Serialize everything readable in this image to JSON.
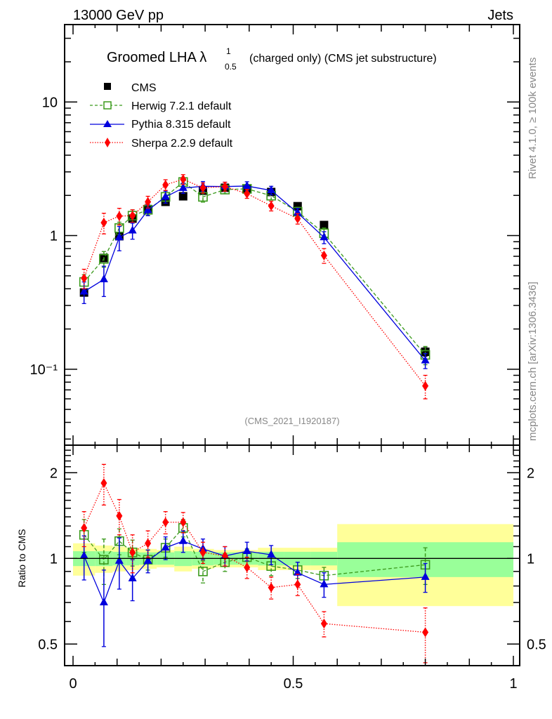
{
  "header": {
    "left": "13000 GeV pp",
    "right": "Jets"
  },
  "side_labels": {
    "rivet": "Rivet 4.1.0, ≥ 100k events",
    "mcplots": "mcplots.cern.ch [arXiv:1306.3436]"
  },
  "chart_data": [
    {
      "type": "line",
      "panel": "main",
      "title": "Groomed LHA λ",
      "title_sup": "1",
      "title_sub": "0.5",
      "title_suffix": "(charged only) (CMS jet substructure)",
      "analysis_label": "(CMS_2021_I1920187)",
      "xlabel": "",
      "ylabel": "",
      "yscale": "log",
      "ylim": [
        0.027,
        38
      ],
      "xlim": [
        0,
        1
      ],
      "yticks": [
        {
          "value": 10,
          "label": "10"
        },
        {
          "value": 1,
          "label": "1"
        },
        {
          "value": 0.1,
          "label": "10⁻¹"
        }
      ],
      "x": [
        0.025,
        0.07,
        0.105,
        0.135,
        0.17,
        0.21,
        0.25,
        0.295,
        0.345,
        0.395,
        0.45,
        0.51,
        0.57,
        0.8
      ],
      "legend": {
        "position": "top-left",
        "entries": [
          "CMS",
          "Herwig 7.2.1 default",
          "Pythia 8.315 default",
          "Sherpa 2.2.9 default"
        ]
      },
      "series": [
        {
          "name": "CMS",
          "color": "#000000",
          "marker": "square",
          "line": "none",
          "values": [
            0.375,
            0.68,
            0.99,
            1.34,
            1.58,
            1.79,
            1.97,
            2.17,
            2.28,
            2.22,
            2.12,
            1.66,
            1.2,
            0.135
          ],
          "err": [
            0.02,
            0.04,
            0.05,
            0.06,
            0.07,
            0.08,
            0.08,
            0.09,
            0.1,
            0.1,
            0.1,
            0.08,
            0.06,
            0.01
          ]
        },
        {
          "name": "Herwig 7.2.1 default",
          "color": "#3b9a1c",
          "marker": "open-square",
          "line": "dashed",
          "values": [
            0.45,
            0.67,
            1.14,
            1.41,
            1.56,
            1.95,
            2.52,
            1.95,
            2.21,
            2.24,
            1.99,
            1.51,
            1.04,
            0.128
          ],
          "err": [
            0.06,
            0.09,
            0.12,
            0.15,
            0.14,
            0.15,
            0.18,
            0.17,
            0.15,
            0.15,
            0.14,
            0.12,
            0.1,
            0.02
          ]
        },
        {
          "name": "Pythia 8.315 default",
          "color": "#0000dd",
          "marker": "triangle",
          "line": "solid",
          "values": [
            0.38,
            0.47,
            0.97,
            1.09,
            1.55,
            1.95,
            2.27,
            2.34,
            2.33,
            2.35,
            2.18,
            1.48,
            0.97,
            0.116
          ],
          "err": [
            0.07,
            0.12,
            0.2,
            0.15,
            0.14,
            0.2,
            0.2,
            0.2,
            0.18,
            0.18,
            0.16,
            0.12,
            0.1,
            0.015
          ]
        },
        {
          "name": "Sherpa 2.2.9 default",
          "color": "#ff0000",
          "marker": "diamond",
          "line": "dotted",
          "values": [
            0.48,
            1.25,
            1.4,
            1.41,
            1.79,
            2.4,
            2.64,
            2.28,
            2.33,
            2.06,
            1.67,
            1.34,
            0.71,
            0.075
          ],
          "err": [
            0.08,
            0.22,
            0.2,
            0.15,
            0.18,
            0.22,
            0.22,
            0.2,
            0.18,
            0.16,
            0.14,
            0.12,
            0.09,
            0.015
          ]
        }
      ]
    },
    {
      "type": "line",
      "panel": "ratio",
      "ylabel": "Ratio to CMS",
      "yscale": "log",
      "ylim": [
        0.42,
        2.5
      ],
      "xlim": [
        0,
        1
      ],
      "yticks": [
        {
          "value": 2,
          "label": "2"
        },
        {
          "value": 1,
          "label": "1"
        },
        {
          "value": 0.5,
          "label": "0.5"
        }
      ],
      "xticks": [
        {
          "value": 0,
          "label": "0"
        },
        {
          "value": 0.5,
          "label": "0.5"
        },
        {
          "value": 1,
          "label": "1"
        }
      ],
      "bin_edges": [
        0,
        0.05,
        0.09,
        0.12,
        0.15,
        0.19,
        0.23,
        0.27,
        0.32,
        0.37,
        0.42,
        0.48,
        0.54,
        0.6,
        1.0
      ],
      "band_inner": [
        0.06,
        0.06,
        0.055,
        0.055,
        0.05,
        0.05,
        0.06,
        0.055,
        0.05,
        0.05,
        0.055,
        0.055,
        0.055,
        0.14
      ],
      "band_outer": [
        0.13,
        0.11,
        0.1,
        0.09,
        0.08,
        0.07,
        0.1,
        0.08,
        0.07,
        0.07,
        0.09,
        0.09,
        0.09,
        0.32
      ],
      "x": [
        0.025,
        0.07,
        0.105,
        0.135,
        0.17,
        0.21,
        0.25,
        0.295,
        0.345,
        0.395,
        0.45,
        0.51,
        0.57,
        0.8
      ],
      "series": [
        {
          "name": "Herwig 7.2.1 default",
          "color": "#3b9a1c",
          "marker": "open-square",
          "line": "dashed",
          "values": [
            1.21,
            0.99,
            1.15,
            1.05,
            0.99,
            1.09,
            1.28,
            0.9,
            0.97,
            1.01,
            0.94,
            0.91,
            0.87,
            0.95
          ],
          "err": [
            0.16,
            0.18,
            0.12,
            0.11,
            0.08,
            0.08,
            0.09,
            0.08,
            0.07,
            0.07,
            0.07,
            0.06,
            0.06,
            0.14
          ]
        },
        {
          "name": "Pythia 8.315 default",
          "color": "#0000dd",
          "marker": "triangle",
          "line": "solid",
          "values": [
            1.02,
            0.7,
            0.98,
            0.85,
            0.98,
            1.09,
            1.15,
            1.08,
            1.02,
            1.06,
            1.03,
            0.89,
            0.81,
            0.86
          ],
          "err": [
            0.18,
            0.21,
            0.2,
            0.14,
            0.09,
            0.1,
            0.1,
            0.09,
            0.08,
            0.08,
            0.08,
            0.08,
            0.08,
            0.1
          ]
        },
        {
          "name": "Sherpa 2.2.9 default",
          "color": "#ff0000",
          "marker": "diamond",
          "line": "dotted",
          "values": [
            1.28,
            1.84,
            1.41,
            1.05,
            1.13,
            1.34,
            1.34,
            1.05,
            1.02,
            0.93,
            0.79,
            0.81,
            0.59,
            0.55
          ],
          "err": [
            0.18,
            0.3,
            0.2,
            0.16,
            0.12,
            0.12,
            0.11,
            0.09,
            0.08,
            0.08,
            0.07,
            0.07,
            0.06,
            0.12
          ]
        }
      ]
    }
  ]
}
